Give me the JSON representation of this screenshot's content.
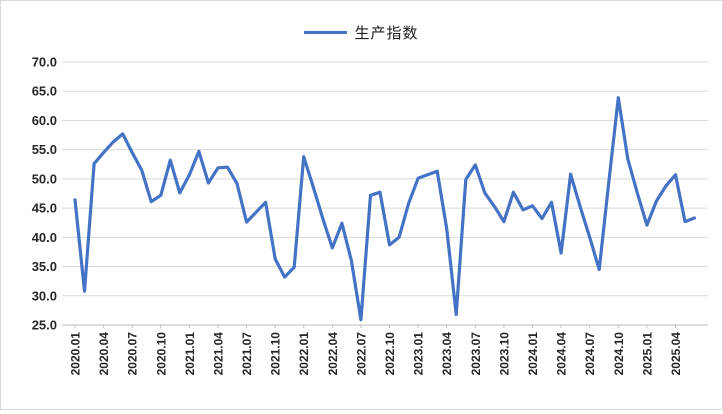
{
  "chart_data": {
    "type": "line",
    "title": "",
    "legend": "生产指数",
    "legend_position": "top-center",
    "grid": "horizontal",
    "ylim": [
      25,
      70
    ],
    "y_step": 5,
    "x_label_every": 3,
    "y_tick_labels": [
      "25.0",
      "30.0",
      "35.0",
      "40.0",
      "45.0",
      "50.0",
      "55.0",
      "60.0",
      "65.0",
      "70.0"
    ],
    "x_tick_labels": [
      "2020.01",
      "2020.04",
      "2020.07",
      "2020.10",
      "2021.01",
      "2021.04",
      "2021.07",
      "2021.10",
      "2022.01",
      "2022.04",
      "2022.07",
      "2022.10",
      "2023.01",
      "2023.04",
      "2023.07",
      "2023.10",
      "2024.01",
      "2024.04",
      "2024.07",
      "2024.10",
      "2025.01",
      "2025.04"
    ],
    "categories": [
      "2020.01",
      "2020.02",
      "2020.03",
      "2020.04",
      "2020.05",
      "2020.06",
      "2020.07",
      "2020.08",
      "2020.09",
      "2020.10",
      "2020.11",
      "2020.12",
      "2021.01",
      "2021.02",
      "2021.03",
      "2021.04",
      "2021.05",
      "2021.06",
      "2021.07",
      "2021.08",
      "2021.09",
      "2021.10",
      "2021.11",
      "2021.12",
      "2022.01",
      "2022.02",
      "2022.03",
      "2022.04",
      "2022.05",
      "2022.06",
      "2022.07",
      "2022.08",
      "2022.09",
      "2022.10",
      "2022.11",
      "2022.12",
      "2023.01",
      "2023.02",
      "2023.03",
      "2023.04",
      "2023.05",
      "2023.06",
      "2023.07",
      "2023.08",
      "2023.09",
      "2023.10",
      "2023.11",
      "2023.12",
      "2024.01",
      "2024.02",
      "2024.03",
      "2024.04",
      "2024.05",
      "2024.06",
      "2024.07",
      "2024.08",
      "2024.09",
      "2024.10",
      "2024.11",
      "2024.12",
      "2025.01",
      "2025.02",
      "2025.03",
      "2025.04",
      "2025.05",
      "2025.06"
    ],
    "series": [
      {
        "name": "生产指数",
        "color": "#4472C4",
        "values": [
          46.4,
          30.8,
          52.6,
          54.5,
          56.3,
          57.7,
          54.5,
          51.5,
          46.1,
          47.2,
          53.2,
          47.6,
          50.7,
          54.7,
          49.3,
          51.9,
          52.0,
          49.2,
          42.6,
          44.3,
          46.0,
          36.3,
          33.2,
          34.9,
          53.8,
          48.6,
          43.2,
          38.2,
          42.4,
          36.0,
          25.9,
          47.2,
          47.7,
          38.7,
          40.0,
          45.8,
          50.1,
          50.7,
          51.3,
          41.5,
          26.8,
          49.9,
          52.4,
          47.6,
          45.3,
          42.7,
          47.7,
          44.7,
          45.4,
          43.2,
          46.0,
          37.3,
          50.8,
          45.3,
          40.0,
          34.5,
          49.3,
          63.9,
          53.4,
          47.6,
          42.1,
          46.2,
          48.8,
          50.7,
          42.7,
          43.3
        ]
      }
    ],
    "colors": {
      "line": "#4472C4",
      "grid": "#d9d9d9",
      "axis": "#bfbfbf",
      "tick_text": "#262626",
      "legend_text": "#1f1f1f",
      "border": "#d9d9d9",
      "background": "#ffffff"
    }
  }
}
